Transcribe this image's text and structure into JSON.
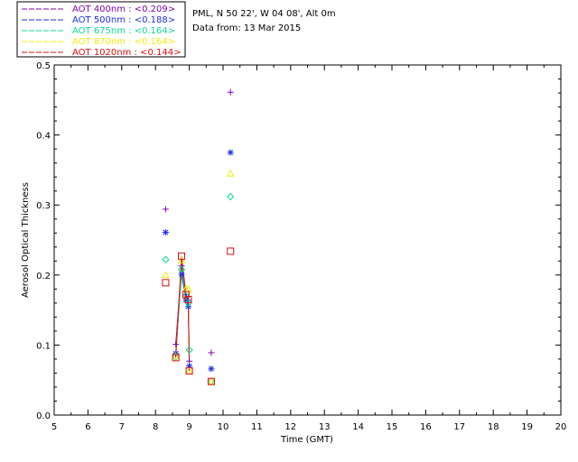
{
  "header": {
    "location": "PML, N 50 22', W 04 08', Alt 0m",
    "date": "Data from: 13 Mar 2015"
  },
  "colors": {
    "aot400": "#7b0aa8",
    "aot500": "#1e2ee8",
    "aot675": "#10d890",
    "aot870": "#f2ec10",
    "aot1020": "#d81010"
  },
  "chart_data": {
    "type": "scatter",
    "title": "",
    "xlabel": "Time (GMT)",
    "ylabel": "Aerosol Optical Thickness",
    "xlim": [
      5,
      20
    ],
    "ylim": [
      0.0,
      0.5
    ],
    "xticks": [
      "5",
      "6",
      "7",
      "8",
      "9",
      "10",
      "11",
      "12",
      "13",
      "14",
      "15",
      "16",
      "17",
      "18",
      "19",
      "20"
    ],
    "yticks": [
      "0.0",
      "0.1",
      "0.2",
      "0.3",
      "0.4",
      "0.5"
    ],
    "grid": false,
    "legend_position": "top-left",
    "series": [
      {
        "name": "AOT  400nm : <0.209>",
        "marker": "plus",
        "color_key": "aot400",
        "points": [
          [
            8.3,
            0.294
          ],
          [
            8.6,
            0.101
          ],
          [
            8.77,
            0.213
          ],
          [
            8.9,
            0.172
          ],
          [
            8.97,
            0.164
          ],
          [
            9.0,
            0.077
          ],
          [
            9.65,
            0.089
          ],
          [
            10.22,
            0.461
          ]
        ],
        "line": [
          [
            8.6,
            0.101
          ],
          [
            8.77,
            0.213
          ],
          [
            8.9,
            0.172
          ],
          [
            8.97,
            0.164
          ],
          [
            9.0,
            0.077
          ]
        ]
      },
      {
        "name": "AOT  500nm : <0.188>",
        "marker": "asterisk",
        "color_key": "aot500",
        "points": [
          [
            8.3,
            0.261
          ],
          [
            8.6,
            0.088
          ],
          [
            8.77,
            0.201
          ],
          [
            8.9,
            0.165
          ],
          [
            8.97,
            0.155
          ],
          [
            9.0,
            0.07
          ],
          [
            9.65,
            0.066
          ],
          [
            10.22,
            0.375
          ]
        ],
        "line": [
          [
            8.6,
            0.088
          ],
          [
            8.77,
            0.201
          ],
          [
            8.9,
            0.165
          ],
          [
            8.97,
            0.155
          ],
          [
            9.0,
            0.07
          ]
        ]
      },
      {
        "name": "AOT  675nm : <0.164>",
        "marker": "diamond",
        "color_key": "aot675",
        "points": [
          [
            8.3,
            0.222
          ],
          [
            8.6,
            0.083
          ],
          [
            8.77,
            0.208
          ],
          [
            8.9,
            0.17
          ],
          [
            8.97,
            0.16
          ],
          [
            9.0,
            0.093
          ],
          [
            9.65,
            0.048
          ],
          [
            10.22,
            0.312
          ]
        ],
        "line": [
          [
            8.6,
            0.083
          ],
          [
            8.77,
            0.208
          ],
          [
            8.9,
            0.17
          ],
          [
            8.97,
            0.16
          ],
          [
            9.0,
            0.093
          ]
        ]
      },
      {
        "name": "AOT  870nm : <0.164>",
        "marker": "triangle",
        "color_key": "aot870",
        "points": [
          [
            8.3,
            0.2
          ],
          [
            8.6,
            0.084
          ],
          [
            8.77,
            0.221
          ],
          [
            8.9,
            0.18
          ],
          [
            8.97,
            0.18
          ],
          [
            9.0,
            0.063
          ],
          [
            9.65,
            0.048
          ],
          [
            10.22,
            0.345
          ]
        ],
        "line": [
          [
            8.6,
            0.084
          ],
          [
            8.77,
            0.221
          ],
          [
            8.9,
            0.18
          ],
          [
            8.97,
            0.18
          ],
          [
            9.0,
            0.063
          ]
        ]
      },
      {
        "name": "AOT 1020nm : <0.144>",
        "marker": "square",
        "color_key": "aot1020",
        "points": [
          [
            8.3,
            0.189
          ],
          [
            8.6,
            0.082
          ],
          [
            8.77,
            0.227
          ],
          [
            8.9,
            0.172
          ],
          [
            8.97,
            0.165
          ],
          [
            9.0,
            0.063
          ],
          [
            9.65,
            0.048
          ],
          [
            10.22,
            0.234
          ]
        ],
        "line": [
          [
            8.6,
            0.082
          ],
          [
            8.77,
            0.227
          ],
          [
            8.9,
            0.172
          ],
          [
            8.97,
            0.165
          ],
          [
            9.0,
            0.063
          ]
        ]
      }
    ]
  }
}
